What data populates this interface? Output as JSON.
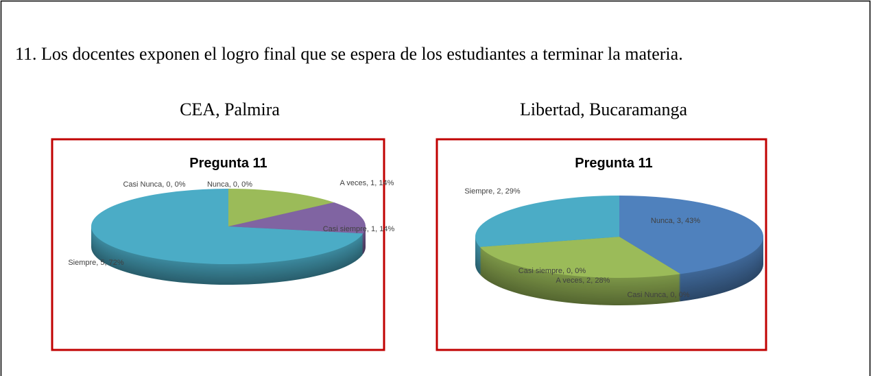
{
  "document": {
    "question": "11. Los docentes exponen el logro final que se espera de los estudiantes a terminar la materia.",
    "subtitles": [
      "CEA, Palmira",
      "Libertad, Bucaramanga"
    ]
  },
  "chart_data": [
    {
      "type": "pie",
      "title": "Pregunta 11",
      "values": [
        14,
        14,
        72,
        0,
        0
      ],
      "value_labels": [
        "A veces, 1, 14%",
        "Casi siempre, 1, 14%",
        "Siempre, 5, 72%",
        "Casi Nunca, 0, 0%",
        "Nunca, 0, 0%"
      ],
      "colors": [
        "#9bbb59",
        "#8064a2",
        "#4bacc6",
        "#c0504d",
        "#4f81bd"
      ]
    },
    {
      "type": "pie",
      "title": "Pregunta 11",
      "values": [
        43,
        0,
        28,
        0,
        29
      ],
      "value_labels": [
        "Nunca, 3, 43%",
        "Casi Nunca, 0, 0%",
        "A veces, 2, 28%",
        "Casi siempre, 0, 0%",
        "Siempre, 2, 29%"
      ],
      "colors": [
        "#4f81bd",
        "#c0504d",
        "#9bbb59",
        "#8064a2",
        "#4bacc6"
      ]
    }
  ]
}
